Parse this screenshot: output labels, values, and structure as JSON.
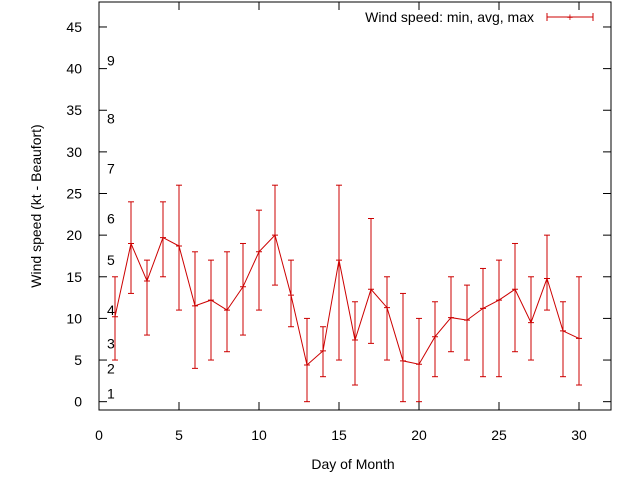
{
  "chart_data": {
    "type": "line",
    "xlabel": "Day of Month",
    "ylabel": "Wind speed (kt - Beaufort)",
    "xlim": [
      0,
      32
    ],
    "ylim": [
      -1,
      48
    ],
    "x_ticks": [
      0,
      5,
      10,
      15,
      20,
      25,
      30
    ],
    "y_ticks": [
      0,
      5,
      10,
      15,
      20,
      25,
      30,
      35,
      40,
      45
    ],
    "grid": false,
    "legend_position": "top-right",
    "series": [
      {
        "name": "Wind speed: min, avg, max",
        "color": "#cc0000",
        "x": [
          1,
          2,
          3,
          4,
          5,
          6,
          7,
          8,
          9,
          10,
          11,
          12,
          13,
          14,
          15,
          16,
          17,
          18,
          19,
          20,
          21,
          22,
          23,
          24,
          25,
          26,
          27,
          28,
          29,
          30
        ],
        "avg": [
          10.2,
          19.0,
          14.5,
          19.7,
          18.7,
          11.5,
          12.2,
          11.0,
          13.8,
          18.0,
          20.0,
          12.8,
          4.4,
          6.1,
          17.0,
          7.4,
          13.5,
          11.3,
          4.9,
          4.5,
          7.8,
          10.1,
          9.8,
          11.2,
          12.2,
          13.5,
          9.5,
          14.8,
          8.5,
          7.6
        ],
        "min": [
          5,
          13,
          8,
          15,
          11,
          4,
          5,
          6,
          8,
          11,
          14,
          9,
          0,
          3,
          5,
          2,
          7,
          5,
          0,
          0,
          3,
          6,
          5,
          3,
          3,
          6,
          5,
          11,
          3,
          2
        ],
        "max": [
          15,
          24,
          17,
          24,
          26,
          18,
          17,
          18,
          19,
          23,
          26,
          17,
          10,
          9,
          26,
          12,
          22,
          15,
          13,
          10,
          12,
          15,
          14,
          16,
          17,
          19,
          15,
          20,
          12,
          15
        ]
      }
    ],
    "annotations": [
      {
        "text": "1",
        "y": 1
      },
      {
        "text": "2",
        "y": 4
      },
      {
        "text": "3",
        "y": 7
      },
      {
        "text": "4",
        "y": 11
      },
      {
        "text": "5",
        "y": 17
      },
      {
        "text": "6",
        "y": 22
      },
      {
        "text": "7",
        "y": 28
      },
      {
        "text": "8",
        "y": 34
      },
      {
        "text": "9",
        "y": 41
      }
    ]
  }
}
